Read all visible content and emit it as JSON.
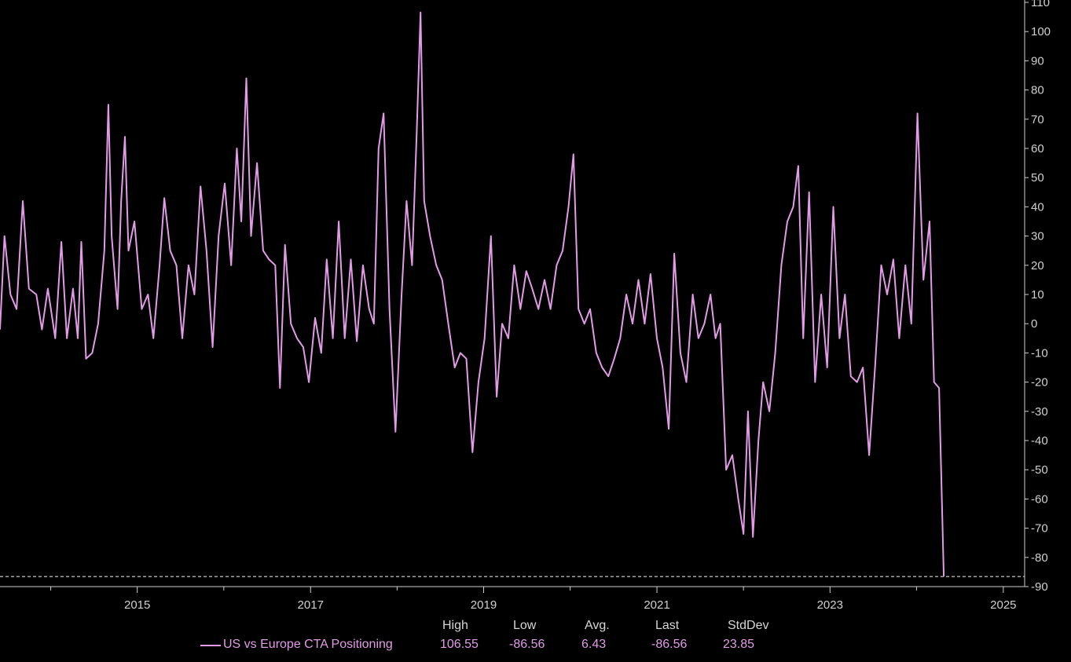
{
  "chart_data": {
    "type": "line",
    "title": "",
    "xlabel": "",
    "ylabel": "",
    "ylim": [
      -90,
      110
    ],
    "xlim": [
      "2013-06-01",
      "2025-04-01"
    ],
    "y_ticks": [
      110,
      100,
      90,
      80,
      70,
      60,
      50,
      40,
      30,
      20,
      10,
      0,
      -10,
      -20,
      -30,
      -40,
      -50,
      -60,
      -70,
      -80,
      -90
    ],
    "x_ticks": [
      "2015",
      "2017",
      "2019",
      "2021",
      "2023",
      "2025"
    ],
    "grid": false,
    "axis_side": "right",
    "reference_line": {
      "value": -86.56,
      "style": "dashed"
    },
    "color": "#e39be8",
    "series": [
      {
        "name": "US vs Europe CTA Positioning",
        "points": [
          [
            "2013-06-01",
            -2
          ],
          [
            "2013-06-20",
            30
          ],
          [
            "2013-07-15",
            10
          ],
          [
            "2013-08-10",
            5
          ],
          [
            "2013-09-05",
            42
          ],
          [
            "2013-10-01",
            12
          ],
          [
            "2013-11-01",
            10
          ],
          [
            "2013-11-25",
            -2
          ],
          [
            "2013-12-20",
            12
          ],
          [
            "2014-01-20",
            -5
          ],
          [
            "2014-02-15",
            28
          ],
          [
            "2014-03-10",
            -5
          ],
          [
            "2014-04-05",
            12
          ],
          [
            "2014-04-25",
            -5
          ],
          [
            "2014-05-10",
            28
          ],
          [
            "2014-05-30",
            -12
          ],
          [
            "2014-06-25",
            -10
          ],
          [
            "2014-07-20",
            0
          ],
          [
            "2014-08-15",
            25
          ],
          [
            "2014-09-01",
            75
          ],
          [
            "2014-09-15",
            30
          ],
          [
            "2014-10-10",
            5
          ],
          [
            "2014-10-25",
            42
          ],
          [
            "2014-11-10",
            64
          ],
          [
            "2014-11-25",
            25
          ],
          [
            "2014-12-20",
            35
          ],
          [
            "2015-01-20",
            5
          ],
          [
            "2015-02-15",
            10
          ],
          [
            "2015-03-10",
            -5
          ],
          [
            "2015-04-05",
            20
          ],
          [
            "2015-04-25",
            43
          ],
          [
            "2015-05-20",
            25
          ],
          [
            "2015-06-15",
            20
          ],
          [
            "2015-07-10",
            -5
          ],
          [
            "2015-08-05",
            20
          ],
          [
            "2015-08-30",
            10
          ],
          [
            "2015-09-25",
            47
          ],
          [
            "2015-10-20",
            25
          ],
          [
            "2015-11-15",
            -8
          ],
          [
            "2015-12-10",
            30
          ],
          [
            "2016-01-05",
            48
          ],
          [
            "2016-02-01",
            20
          ],
          [
            "2016-02-25",
            60
          ],
          [
            "2016-03-15",
            35
          ],
          [
            "2016-04-05",
            84
          ],
          [
            "2016-04-25",
            30
          ],
          [
            "2016-05-20",
            55
          ],
          [
            "2016-06-15",
            25
          ],
          [
            "2016-07-10",
            22
          ],
          [
            "2016-08-05",
            20
          ],
          [
            "2016-08-25",
            -22
          ],
          [
            "2016-09-15",
            27
          ],
          [
            "2016-10-10",
            0
          ],
          [
            "2016-11-05",
            -5
          ],
          [
            "2016-12-01",
            -8
          ],
          [
            "2016-12-25",
            -20
          ],
          [
            "2017-01-20",
            2
          ],
          [
            "2017-02-15",
            -10
          ],
          [
            "2017-03-10",
            22
          ],
          [
            "2017-04-05",
            -5
          ],
          [
            "2017-04-30",
            35
          ],
          [
            "2017-05-25",
            -5
          ],
          [
            "2017-06-20",
            22
          ],
          [
            "2017-07-15",
            -6
          ],
          [
            "2017-08-10",
            20
          ],
          [
            "2017-09-05",
            5
          ],
          [
            "2017-09-25",
            0
          ],
          [
            "2017-10-15",
            60
          ],
          [
            "2017-11-05",
            72
          ],
          [
            "2017-11-30",
            5
          ],
          [
            "2017-12-25",
            -37
          ],
          [
            "2018-01-20",
            10
          ],
          [
            "2018-02-10",
            42
          ],
          [
            "2018-03-05",
            20
          ],
          [
            "2018-03-25",
            66
          ],
          [
            "2018-04-10",
            106.55
          ],
          [
            "2018-04-25",
            42
          ],
          [
            "2018-05-20",
            30
          ],
          [
            "2018-06-15",
            20
          ],
          [
            "2018-07-10",
            15
          ],
          [
            "2018-08-05",
            0
          ],
          [
            "2018-09-01",
            -15
          ],
          [
            "2018-09-25",
            -10
          ],
          [
            "2018-10-20",
            -12
          ],
          [
            "2018-11-15",
            -44
          ],
          [
            "2018-12-10",
            -20
          ],
          [
            "2019-01-05",
            -5
          ],
          [
            "2019-02-01",
            30
          ],
          [
            "2019-02-25",
            -25
          ],
          [
            "2019-03-20",
            0
          ],
          [
            "2019-04-15",
            -5
          ],
          [
            "2019-05-10",
            20
          ],
          [
            "2019-06-05",
            5
          ],
          [
            "2019-06-30",
            18
          ],
          [
            "2019-07-25",
            12
          ],
          [
            "2019-08-20",
            5
          ],
          [
            "2019-09-15",
            15
          ],
          [
            "2019-10-10",
            5
          ],
          [
            "2019-11-05",
            20
          ],
          [
            "2019-11-30",
            25
          ],
          [
            "2019-12-25",
            40
          ],
          [
            "2020-01-15",
            58
          ],
          [
            "2020-02-05",
            5
          ],
          [
            "2020-03-01",
            0
          ],
          [
            "2020-03-25",
            5
          ],
          [
            "2020-04-20",
            -10
          ],
          [
            "2020-05-15",
            -15
          ],
          [
            "2020-06-10",
            -18
          ],
          [
            "2020-07-05",
            -12
          ],
          [
            "2020-07-30",
            -5
          ],
          [
            "2020-08-25",
            10
          ],
          [
            "2020-09-20",
            0
          ],
          [
            "2020-10-15",
            15
          ],
          [
            "2020-11-10",
            0
          ],
          [
            "2020-12-05",
            17
          ],
          [
            "2021-01-01",
            -5
          ],
          [
            "2021-01-25",
            -15
          ],
          [
            "2021-02-20",
            -36
          ],
          [
            "2021-03-15",
            24
          ],
          [
            "2021-04-10",
            -10
          ],
          [
            "2021-05-05",
            -20
          ],
          [
            "2021-06-01",
            10
          ],
          [
            "2021-06-25",
            -5
          ],
          [
            "2021-07-20",
            0
          ],
          [
            "2021-08-15",
            10
          ],
          [
            "2021-09-05",
            -5
          ],
          [
            "2021-09-25",
            0
          ],
          [
            "2021-10-20",
            -50
          ],
          [
            "2021-11-15",
            -45
          ],
          [
            "2021-12-10",
            -60
          ],
          [
            "2022-01-01",
            -72
          ],
          [
            "2022-01-20",
            -30
          ],
          [
            "2022-02-10",
            -73
          ],
          [
            "2022-03-05",
            -40
          ],
          [
            "2022-03-25",
            -20
          ],
          [
            "2022-04-20",
            -30
          ],
          [
            "2022-05-15",
            -10
          ],
          [
            "2022-06-10",
            20
          ],
          [
            "2022-07-05",
            35
          ],
          [
            "2022-07-30",
            40
          ],
          [
            "2022-08-20",
            54
          ],
          [
            "2022-09-10",
            -5
          ],
          [
            "2022-10-05",
            45
          ],
          [
            "2022-10-30",
            -20
          ],
          [
            "2022-11-25",
            10
          ],
          [
            "2022-12-20",
            -15
          ],
          [
            "2023-01-15",
            40
          ],
          [
            "2023-02-10",
            -5
          ],
          [
            "2023-03-05",
            10
          ],
          [
            "2023-03-30",
            -18
          ],
          [
            "2023-04-25",
            -20
          ],
          [
            "2023-05-20",
            -15
          ],
          [
            "2023-06-15",
            -45
          ],
          [
            "2023-07-10",
            -15
          ],
          [
            "2023-08-05",
            20
          ],
          [
            "2023-08-30",
            10
          ],
          [
            "2023-09-25",
            22
          ],
          [
            "2023-10-20",
            -5
          ],
          [
            "2023-11-15",
            20
          ],
          [
            "2023-12-10",
            0
          ],
          [
            "2024-01-05",
            72
          ],
          [
            "2024-01-30",
            15
          ],
          [
            "2024-02-25",
            35
          ],
          [
            "2024-03-15",
            -20
          ],
          [
            "2024-04-05",
            -22
          ],
          [
            "2024-04-25",
            -86.56
          ]
        ]
      }
    ]
  },
  "legend": {
    "series_name": "US vs Europe CTA Positioning",
    "headers": {
      "high": "High",
      "low": "Low",
      "avg": "Avg.",
      "last": "Last",
      "stddev": "StdDev"
    },
    "values": {
      "high": "106.55",
      "low": "-86.56",
      "avg": "6.43",
      "last": "-86.56",
      "stddev": "23.85"
    }
  }
}
